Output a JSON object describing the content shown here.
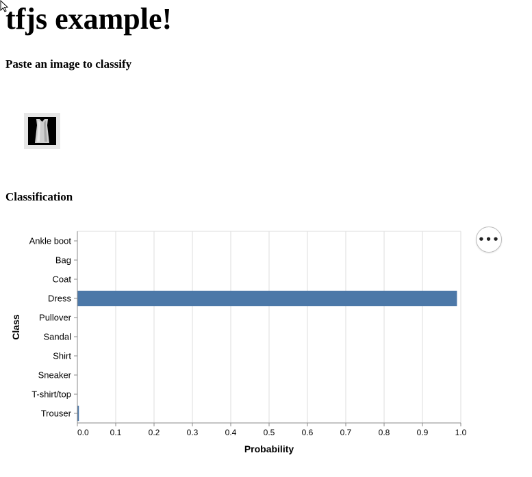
{
  "page": {
    "title": "tfjs example!",
    "prompt": "Paste an image to classify",
    "section_heading": "Classification"
  },
  "pasted_image": {
    "icon": "dress-thumbnail-icon"
  },
  "chart_menu": {
    "icon": "more-horizontal-icon",
    "glyph": "•••"
  },
  "colors": {
    "bar": "#4c78a8",
    "grid": "#dddddd",
    "axis": "#888888",
    "thumb_bg": "#e6e6e6"
  },
  "chart_data": {
    "type": "bar",
    "orientation": "horizontal",
    "categories": [
      "Ankle boot",
      "Bag",
      "Coat",
      "Dress",
      "Pullover",
      "Sandal",
      "Shirt",
      "Sneaker",
      "T-shirt/top",
      "Trouser"
    ],
    "values": [
      0,
      0,
      0,
      0.99,
      0,
      0,
      0,
      0,
      0,
      0.004
    ],
    "xlabel": "Probability",
    "ylabel": "Class",
    "xlim": [
      0,
      1
    ],
    "xticks": [
      "0.0",
      "0.1",
      "0.2",
      "0.3",
      "0.4",
      "0.5",
      "0.6",
      "0.7",
      "0.8",
      "0.9",
      "1.0"
    ],
    "grid": true
  }
}
